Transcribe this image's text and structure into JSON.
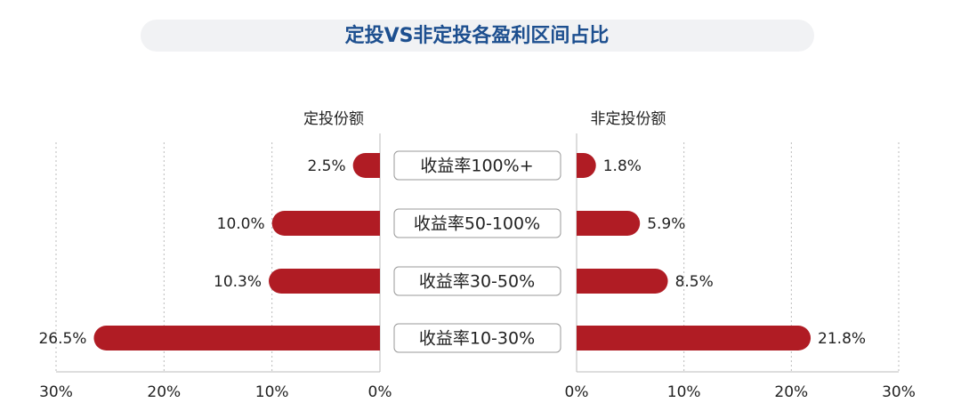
{
  "chart_data": {
    "type": "butterfly",
    "title": "定投VS非定投各盈利区间占比",
    "categories": [
      "收益率100%+",
      "收益率50-100%",
      "收益率30-50%",
      "收益率10-30%"
    ],
    "series": [
      {
        "name": "定投份额",
        "color": "#b01c24",
        "values": [
          2.5,
          10.0,
          10.3,
          26.5
        ],
        "value_labels": [
          "2.5%",
          "10.0%",
          "10.3%",
          "26.5%"
        ]
      },
      {
        "name": "非定投份额",
        "color": "#b01c24",
        "values": [
          1.8,
          5.9,
          8.5,
          21.8
        ],
        "value_labels": [
          "1.8%",
          "5.9%",
          "8.5%",
          "21.8%"
        ]
      }
    ],
    "xlim": [
      0,
      30
    ],
    "xticks": [
      {
        "value": 0,
        "label": "0%"
      },
      {
        "value": 10,
        "label": "10%"
      },
      {
        "value": 20,
        "label": "20%"
      },
      {
        "value": 30,
        "label": "30%"
      }
    ],
    "grid": true
  }
}
